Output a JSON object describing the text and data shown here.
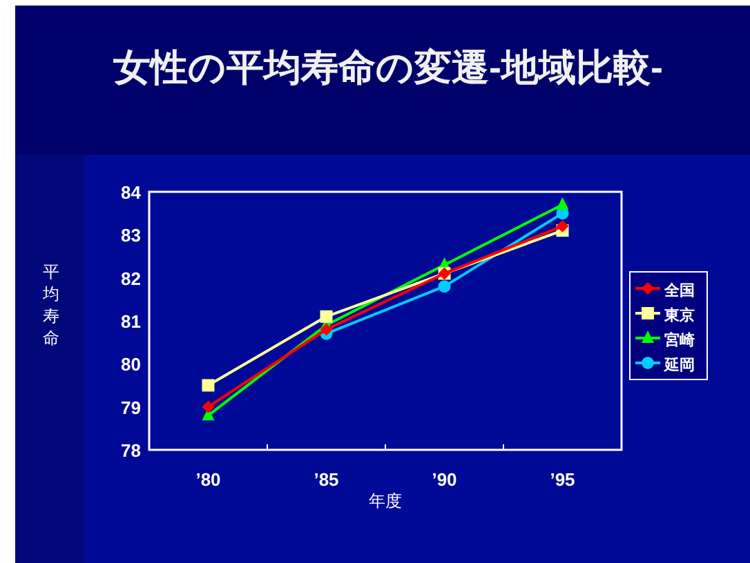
{
  "chart_data": {
    "type": "line",
    "title": "女性の平均寿命の変遷-地域比較-",
    "xlabel": "年度",
    "ylabel": "平均寿命",
    "categories": [
      "’80",
      "’85",
      "’90",
      "’95"
    ],
    "series": [
      {
        "name": "全国",
        "color": "#ff0000",
        "marker": "diamond",
        "values": [
          79.0,
          80.8,
          82.1,
          83.2
        ]
      },
      {
        "name": "東京",
        "color": "#ffff99",
        "marker": "square",
        "values": [
          79.5,
          81.1,
          82.1,
          83.1
        ]
      },
      {
        "name": "宮崎",
        "color": "#00ff00",
        "marker": "triangle",
        "values": [
          78.8,
          80.9,
          82.3,
          83.7
        ]
      },
      {
        "name": "延岡",
        "color": "#00ccff",
        "marker": "circle",
        "values": [
          null,
          80.7,
          81.8,
          83.5
        ]
      }
    ],
    "ylim": [
      78,
      84
    ],
    "yticks": [
      78,
      79,
      80,
      81,
      82,
      83,
      84
    ],
    "grid": false,
    "legend": "right"
  }
}
